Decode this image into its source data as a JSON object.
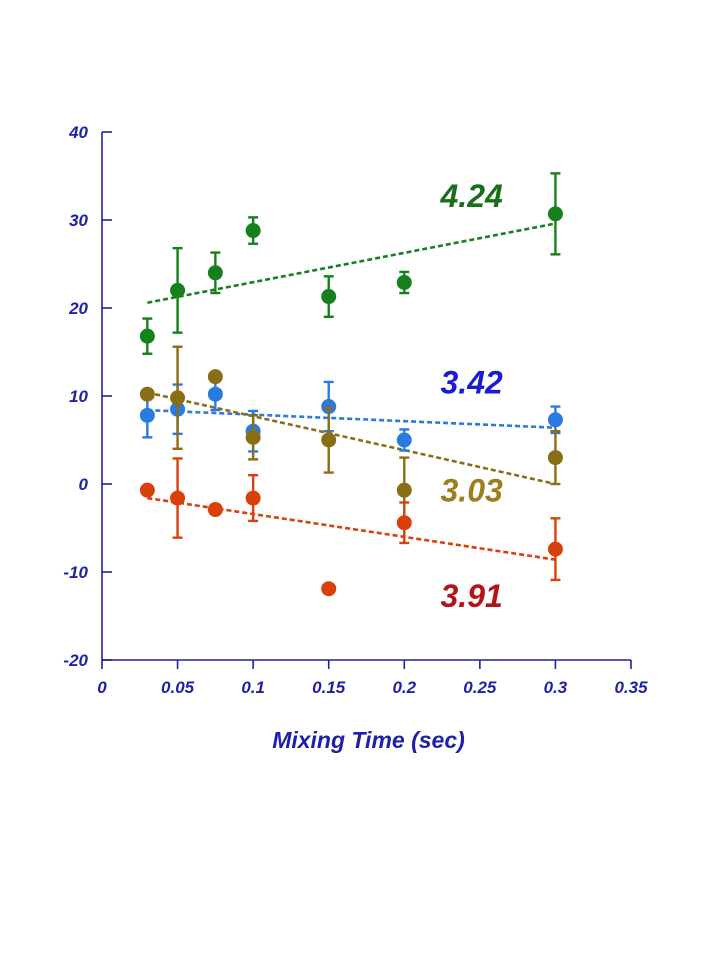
{
  "chart_data": {
    "type": "scatter",
    "title": "",
    "xlabel": "Mixing Time (sec)",
    "ylabel": "",
    "xlim": [
      0,
      0.35
    ],
    "ylim": [
      -20,
      40
    ],
    "x_ticks": [
      0,
      0.05,
      0.1,
      0.15,
      0.2,
      0.25,
      0.3,
      0.35
    ],
    "y_ticks": [
      -20,
      -10,
      0,
      10,
      20,
      30,
      40
    ],
    "x_tick_labels": [
      "0",
      "0.05",
      "0.1",
      "0.15",
      "0.2",
      "0.25",
      "0.3",
      "0.35"
    ],
    "y_tick_labels": [
      "-20",
      "-10",
      "0",
      "10",
      "20",
      "30",
      "40"
    ],
    "axis_color": "#1f1fa8",
    "series": [
      {
        "name": "4.24",
        "label": "4.24",
        "color": "#16801c",
        "label_color": "#1a6e1a",
        "x": [
          0.03,
          0.05,
          0.075,
          0.1,
          0.15,
          0.2,
          0.3
        ],
        "y": [
          16.8,
          22.0,
          24.0,
          28.8,
          21.3,
          22.9,
          30.7
        ],
        "err": [
          2.0,
          4.8,
          2.3,
          1.5,
          2.3,
          1.2,
          4.6
        ],
        "fit": [
          [
            0.03,
            20.6
          ],
          [
            0.3,
            29.6
          ]
        ],
        "label_pos": [
          0.22,
          31.5
        ]
      },
      {
        "name": "3.42",
        "label": "3.42",
        "color": "#2a7ae0",
        "label_color": "#1b1bd6",
        "x": [
          0.03,
          0.05,
          0.075,
          0.1,
          0.15,
          0.2,
          0.3
        ],
        "y": [
          7.8,
          8.5,
          10.2,
          6.0,
          8.8,
          5.0,
          7.3
        ],
        "err": [
          2.5,
          2.8,
          1.8,
          2.3,
          2.8,
          1.2,
          1.5
        ],
        "fit": [
          [
            0.03,
            8.4
          ],
          [
            0.3,
            6.4
          ]
        ],
        "label_pos": [
          0.22,
          10.3
        ]
      },
      {
        "name": "3.03",
        "label": "3.03",
        "color": "#8a6d14",
        "label_color": "#9e7d1e",
        "x": [
          0.03,
          0.05,
          0.075,
          0.1,
          0.15,
          0.2,
          0.3
        ],
        "y": [
          10.2,
          9.8,
          12.2,
          5.3,
          5.0,
          -0.7,
          3.0
        ],
        "err": [
          0.0,
          5.8,
          0.0,
          2.5,
          3.7,
          3.7,
          3.0
        ],
        "fit": [
          [
            0.03,
            10.4
          ],
          [
            0.3,
            0.0
          ]
        ],
        "label_pos": [
          0.22,
          -2.0
        ]
      },
      {
        "name": "3.91",
        "label": "3.91",
        "color": "#d9400a",
        "label_color": "#b3141c",
        "x": [
          0.03,
          0.05,
          0.075,
          0.1,
          0.15,
          0.2,
          0.3
        ],
        "y": [
          -0.7,
          -1.6,
          -2.9,
          -1.6,
          -11.9,
          -4.4,
          -7.4
        ],
        "err": [
          0.0,
          4.5,
          0.0,
          2.6,
          0.0,
          2.3,
          3.5
        ],
        "fit": [
          [
            0.03,
            -1.6
          ],
          [
            0.3,
            -8.6
          ]
        ],
        "label_pos": [
          0.22,
          -14.0
        ]
      }
    ]
  }
}
